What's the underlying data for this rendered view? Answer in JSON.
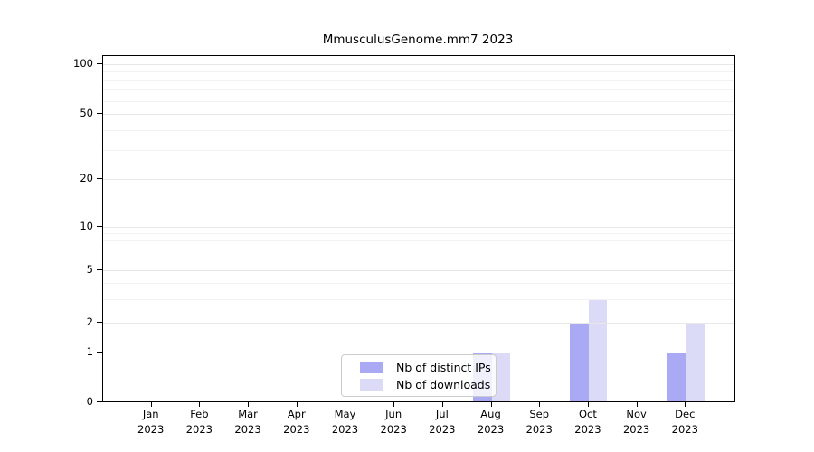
{
  "title": "MmusculusGenome.mm7 2023",
  "chart_data": {
    "type": "bar",
    "title": "MmusculusGenome.mm7 2023",
    "categories": [
      "Jan",
      "Feb",
      "Mar",
      "Apr",
      "May",
      "Jun",
      "Jul",
      "Aug",
      "Sep",
      "Oct",
      "Nov",
      "Dec"
    ],
    "year_label": "2023",
    "series": [
      {
        "name": "Nb of distinct IPs",
        "color": "#a9a9f4",
        "values": [
          0,
          0,
          0,
          0,
          0,
          0,
          0,
          1,
          0,
          2,
          0,
          1
        ]
      },
      {
        "name": "Nb of downloads",
        "color": "#dbdbf8",
        "values": [
          0,
          0,
          0,
          0,
          0,
          0,
          0,
          1,
          0,
          3,
          0,
          2
        ]
      }
    ],
    "y_axis": {
      "scale": "log-like (linear below 1)",
      "ticks": [
        0,
        1,
        2,
        5,
        10,
        20,
        50,
        100
      ],
      "minor_ticks": [
        3,
        4,
        6,
        7,
        8,
        9,
        30,
        40,
        60,
        70,
        80,
        90
      ],
      "range": [
        0,
        112
      ]
    },
    "grid": true,
    "legend_position": "bottom-center"
  },
  "colors": {
    "bar_distinct_ips": "#a9a9f4",
    "bar_downloads": "#dbdbf8",
    "grid_minor": "#f2f2f2",
    "grid_major": "#e7e7e7",
    "grid_value_one": "#c3c3c3",
    "axis": "#000000",
    "legend_border": "#cccccc",
    "background": "#ffffff"
  }
}
